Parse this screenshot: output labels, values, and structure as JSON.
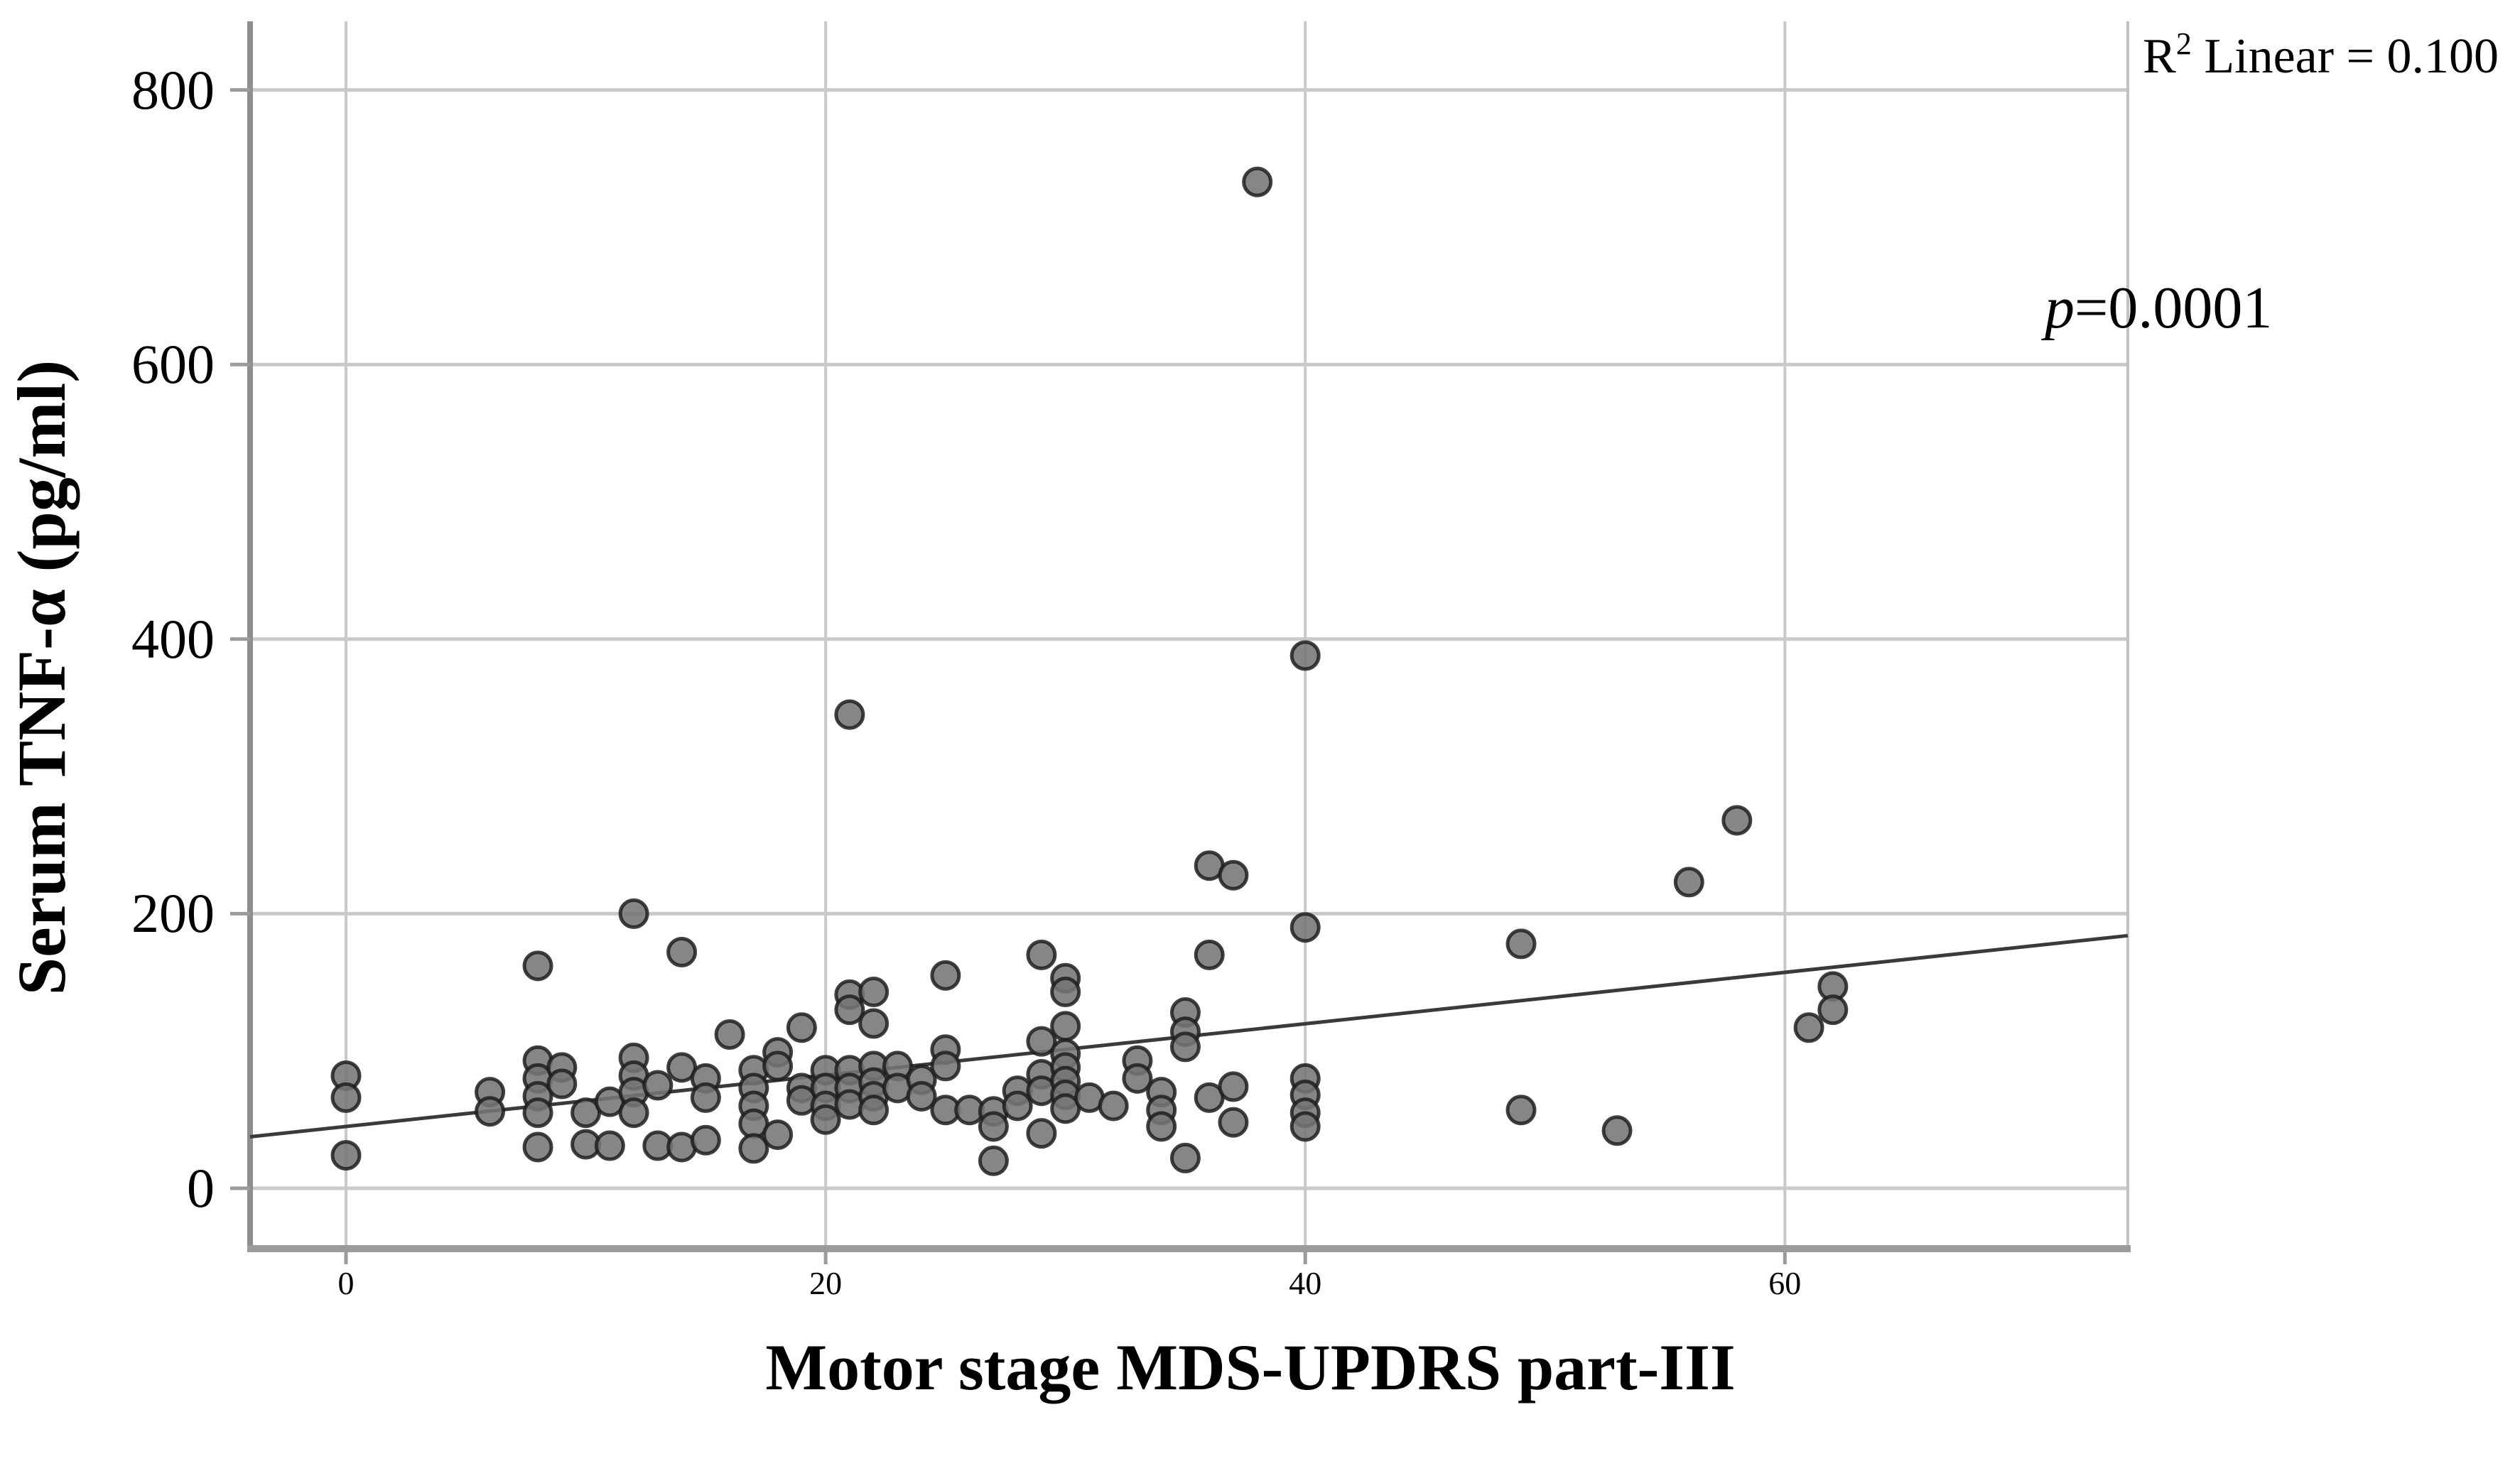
{
  "chart_data": {
    "type": "scatter",
    "title": "",
    "xlabel": "Motor stage MDS-UPDRS part-III",
    "ylabel": "Serum TNF-α (pg/ml)",
    "annotations": {
      "r2": {
        "base": "R",
        "sup": "2",
        "rest": " Linear = 0.100"
      },
      "p": {
        "italic": "p",
        "rest": "=0.0001"
      }
    },
    "x_ticks": [
      0,
      20,
      40,
      60
    ],
    "y_ticks": [
      0,
      200,
      400,
      600,
      800
    ],
    "xlim": [
      -4,
      74.3
    ],
    "ylim": [
      -44,
      850
    ],
    "grid": true,
    "legend_position": "none",
    "regression_line": {
      "x1": -4,
      "y1": 37.5,
      "x2": 74.3,
      "y2": 184,
      "r2_linear": 0.1,
      "p_value": 0.0001
    },
    "points": [
      [
        0,
        82
      ],
      [
        0,
        66
      ],
      [
        0,
        24
      ],
      [
        6,
        70
      ],
      [
        6,
        56
      ],
      [
        8,
        162
      ],
      [
        8,
        93
      ],
      [
        8,
        80
      ],
      [
        8,
        67
      ],
      [
        8,
        55
      ],
      [
        8,
        30
      ],
      [
        9,
        88
      ],
      [
        9,
        76
      ],
      [
        10,
        55
      ],
      [
        10,
        32
      ],
      [
        11,
        63
      ],
      [
        11,
        31
      ],
      [
        12,
        200
      ],
      [
        12,
        95
      ],
      [
        12,
        82
      ],
      [
        12,
        70
      ],
      [
        12,
        55
      ],
      [
        13,
        75
      ],
      [
        13,
        31
      ],
      [
        14,
        172
      ],
      [
        14,
        88
      ],
      [
        14,
        30
      ],
      [
        15,
        80
      ],
      [
        15,
        66
      ],
      [
        15,
        35
      ],
      [
        16,
        112
      ],
      [
        17,
        86
      ],
      [
        17,
        73
      ],
      [
        17,
        60
      ],
      [
        17,
        47
      ],
      [
        17,
        29
      ],
      [
        18,
        99
      ],
      [
        18,
        89
      ],
      [
        18,
        39
      ],
      [
        19,
        117
      ],
      [
        19,
        73
      ],
      [
        19,
        64
      ],
      [
        20,
        86
      ],
      [
        20,
        73
      ],
      [
        20,
        60
      ],
      [
        20,
        50
      ],
      [
        21,
        345
      ],
      [
        21,
        141
      ],
      [
        21,
        130
      ],
      [
        21,
        86
      ],
      [
        21,
        73
      ],
      [
        21,
        61
      ],
      [
        22,
        143
      ],
      [
        22,
        120
      ],
      [
        22,
        89
      ],
      [
        22,
        77
      ],
      [
        22,
        67
      ],
      [
        22,
        57
      ],
      [
        23,
        89
      ],
      [
        23,
        73
      ],
      [
        24,
        79
      ],
      [
        24,
        67
      ],
      [
        25,
        155
      ],
      [
        25,
        101
      ],
      [
        25,
        89
      ],
      [
        25,
        57
      ],
      [
        26,
        57
      ],
      [
        27,
        56
      ],
      [
        27,
        45
      ],
      [
        27,
        20
      ],
      [
        28,
        71
      ],
      [
        28,
        60
      ],
      [
        29,
        170
      ],
      [
        29,
        107
      ],
      [
        29,
        83
      ],
      [
        29,
        71
      ],
      [
        29,
        40
      ],
      [
        30,
        153
      ],
      [
        30,
        143
      ],
      [
        30,
        118
      ],
      [
        30,
        98
      ],
      [
        30,
        88
      ],
      [
        30,
        78
      ],
      [
        30,
        68
      ],
      [
        30,
        58
      ],
      [
        31,
        66
      ],
      [
        32,
        60
      ],
      [
        33,
        93
      ],
      [
        33,
        80
      ],
      [
        34,
        70
      ],
      [
        34,
        57
      ],
      [
        34,
        45
      ],
      [
        35,
        128
      ],
      [
        35,
        114
      ],
      [
        35,
        103
      ],
      [
        35,
        22
      ],
      [
        36,
        235
      ],
      [
        36,
        170
      ],
      [
        36,
        66
      ],
      [
        37,
        228
      ],
      [
        37,
        74
      ],
      [
        37,
        48
      ],
      [
        38,
        733
      ],
      [
        40,
        388
      ],
      [
        40,
        190
      ],
      [
        40,
        80
      ],
      [
        40,
        68
      ],
      [
        40,
        55
      ],
      [
        40,
        45
      ],
      [
        49,
        178
      ],
      [
        49,
        57
      ],
      [
        53,
        42
      ],
      [
        56,
        223
      ],
      [
        58,
        268
      ],
      [
        61,
        117
      ],
      [
        62,
        147
      ],
      [
        62,
        130
      ]
    ],
    "colors": {
      "point_fill": "#757575",
      "point_stroke": "#1e1e1e",
      "grid": "#c9c9c9",
      "axis": "#9b9b9b",
      "regression_line": "#3a3a3a",
      "text": "#000000",
      "background": "#ffffff"
    }
  }
}
